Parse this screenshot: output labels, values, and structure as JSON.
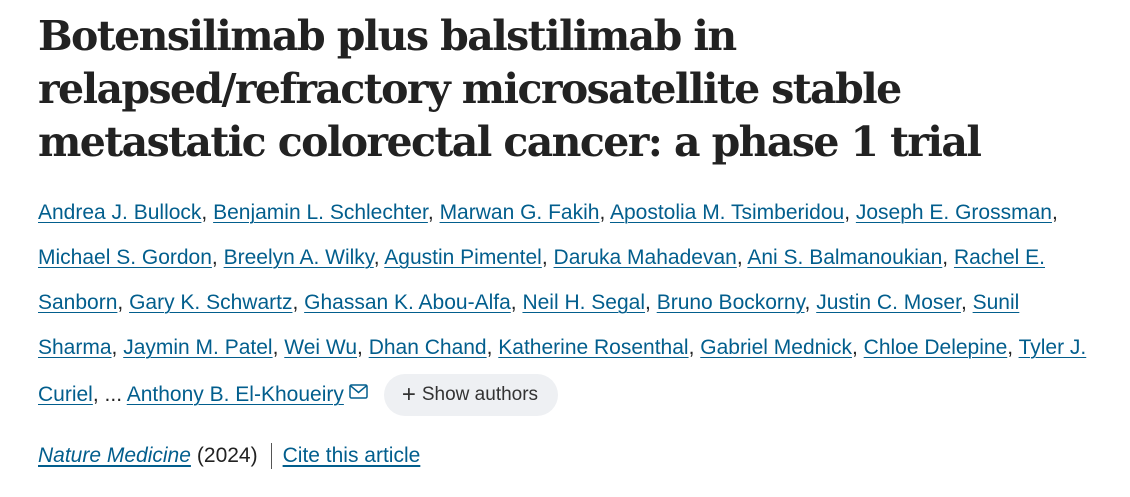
{
  "article": {
    "title": "Botensilimab plus balstilimab in relapsed/refractory microsatellite stable metastatic colorectal cancer: a phase 1 trial"
  },
  "authors": [
    "Andrea J. Bullock",
    "Benjamin L. Schlechter",
    "Marwan G. Fakih",
    "Apostolia M. Tsimberidou",
    "Joseph E. Grossman",
    "Michael S. Gordon",
    "Breelyn A. Wilky",
    "Agustin Pimentel",
    "Daruka Mahadevan",
    "Ani S. Balmanoukian",
    "Rachel E. Sanborn",
    "Gary K. Schwartz",
    "Ghassan K. Abou-Alfa",
    "Neil H. Segal",
    "Bruno Bockorny",
    "Justin C. Moser",
    "Sunil Sharma",
    "Jaymin M. Patel",
    "Wei Wu",
    "Dhan Chand",
    "Katherine Rosenthal",
    "Gabriel Mednick",
    "Chloe Delepine",
    "Tyler J. Curiel"
  ],
  "ellipsis": "...",
  "corresponding_author": "Anthony B. El-Khoueiry",
  "corresponding_icon": "mail-icon",
  "show_authors": {
    "icon": "plus-icon",
    "plus": "+",
    "label": "Show authors"
  },
  "citation": {
    "journal": "Nature Medicine",
    "year": "(2024)",
    "cite_link": "Cite this article"
  },
  "colors": {
    "link": "#025e8d",
    "text": "#222222",
    "button_bg": "#eef0f3"
  }
}
